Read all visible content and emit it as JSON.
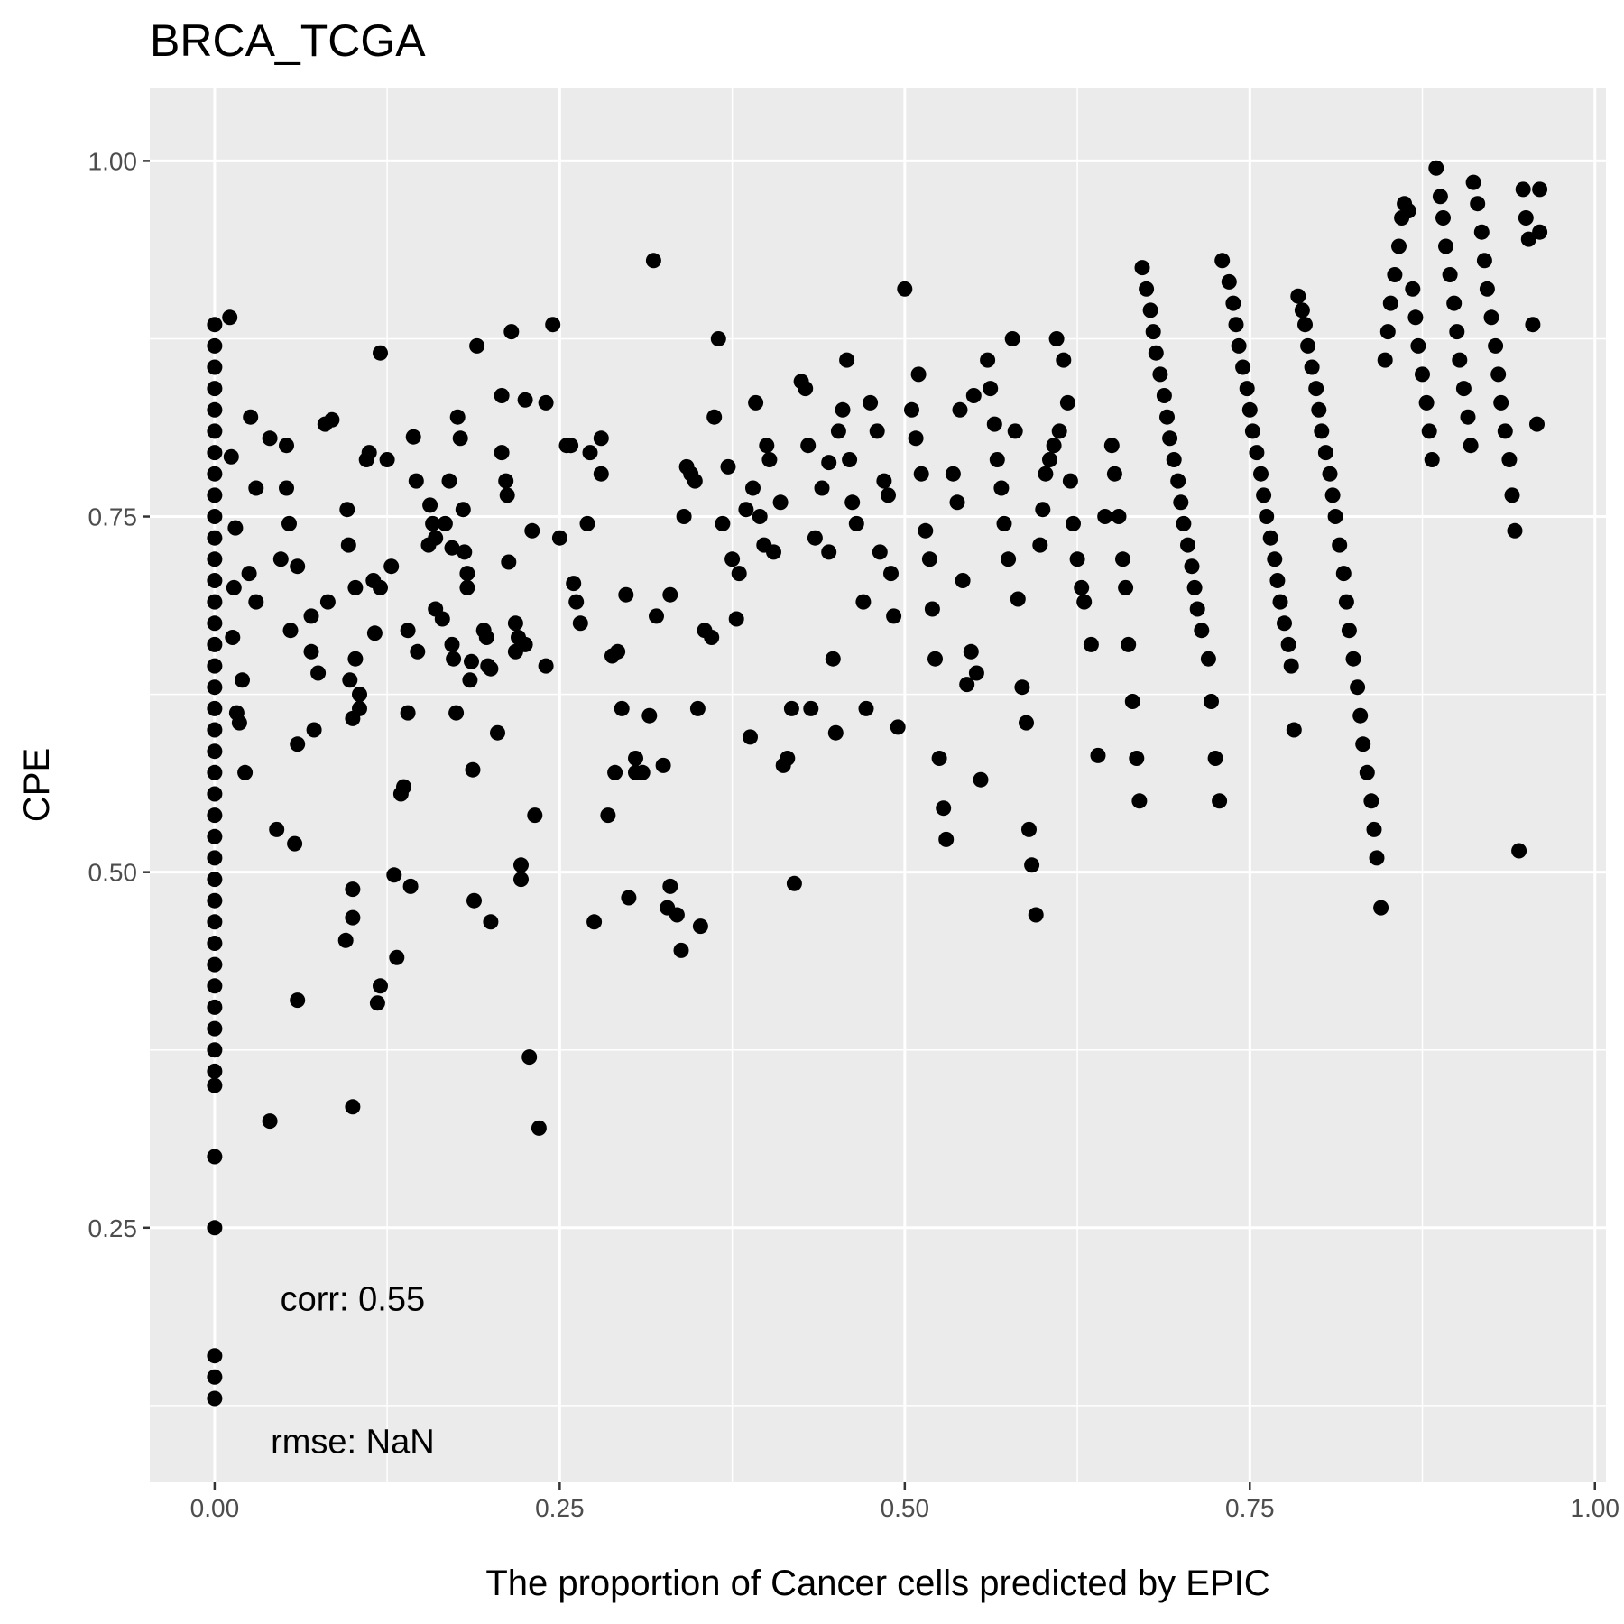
{
  "chart_data": {
    "type": "scatter",
    "title": "BRCA_TCGA",
    "xlabel": "The proportion of Cancer cells predicted by EPIC",
    "ylabel": "CPE",
    "xlim": [
      -0.047,
      1.008
    ],
    "ylim": [
      0.071,
      1.051
    ],
    "x_ticks": [
      0.0,
      0.25,
      0.5,
      0.75,
      1.0
    ],
    "x_tick_labels": [
      "0.00",
      "0.25",
      "0.50",
      "0.75",
      "1.00"
    ],
    "y_ticks": [
      0.25,
      0.5,
      0.75,
      1.0
    ],
    "y_tick_labels": [
      "0.25",
      "0.50",
      "0.75",
      "1.00"
    ],
    "grid": true,
    "legend": "none",
    "colors": {
      "panel": "#ebebeb",
      "grid": "#ffffff",
      "point": "#000000",
      "tick": "#4d4d4d"
    },
    "annotations": [
      {
        "label": "corr: 0.55",
        "x": 0.1,
        "y": 0.2
      },
      {
        "label": "rmse: NaN",
        "x": 0.1,
        "y": 0.1
      }
    ],
    "points": [
      [
        0.0,
        0.885
      ],
      [
        0.0,
        0.87
      ],
      [
        0.0,
        0.855
      ],
      [
        0.0,
        0.84
      ],
      [
        0.0,
        0.825
      ],
      [
        0.0,
        0.81
      ],
      [
        0.0,
        0.795
      ],
      [
        0.0,
        0.78
      ],
      [
        0.0,
        0.765
      ],
      [
        0.0,
        0.75
      ],
      [
        0.0,
        0.735
      ],
      [
        0.0,
        0.72
      ],
      [
        0.0,
        0.705
      ],
      [
        0.0,
        0.69
      ],
      [
        0.0,
        0.675
      ],
      [
        0.0,
        0.66
      ],
      [
        0.0,
        0.645
      ],
      [
        0.0,
        0.63
      ],
      [
        0.0,
        0.615
      ],
      [
        0.0,
        0.6
      ],
      [
        0.0,
        0.585
      ],
      [
        0.0,
        0.57
      ],
      [
        0.0,
        0.555
      ],
      [
        0.0,
        0.54
      ],
      [
        0.0,
        0.525
      ],
      [
        0.0,
        0.51
      ],
      [
        0.0,
        0.495
      ],
      [
        0.0,
        0.48
      ],
      [
        0.0,
        0.465
      ],
      [
        0.0,
        0.45
      ],
      [
        0.0,
        0.435
      ],
      [
        0.0,
        0.42
      ],
      [
        0.0,
        0.405
      ],
      [
        0.0,
        0.39
      ],
      [
        0.0,
        0.375
      ],
      [
        0.0,
        0.36
      ],
      [
        0.0,
        0.35
      ],
      [
        0.0,
        0.3
      ],
      [
        0.0,
        0.25
      ],
      [
        0.0,
        0.16
      ],
      [
        0.0,
        0.145
      ],
      [
        0.0,
        0.13
      ],
      [
        0.011,
        0.89
      ],
      [
        0.012,
        0.792
      ],
      [
        0.015,
        0.742
      ],
      [
        0.014,
        0.7
      ],
      [
        0.013,
        0.665
      ],
      [
        0.016,
        0.612
      ],
      [
        0.018,
        0.605
      ],
      [
        0.02,
        0.635
      ],
      [
        0.022,
        0.57
      ],
      [
        0.025,
        0.71
      ],
      [
        0.026,
        0.82
      ],
      [
        0.03,
        0.77
      ],
      [
        0.03,
        0.69
      ],
      [
        0.04,
        0.325
      ],
      [
        0.04,
        0.805
      ],
      [
        0.045,
        0.53
      ],
      [
        0.048,
        0.72
      ],
      [
        0.052,
        0.8
      ],
      [
        0.052,
        0.77
      ],
      [
        0.054,
        0.745
      ],
      [
        0.055,
        0.67
      ],
      [
        0.058,
        0.52
      ],
      [
        0.06,
        0.715
      ],
      [
        0.06,
        0.59
      ],
      [
        0.06,
        0.41
      ],
      [
        0.07,
        0.68
      ],
      [
        0.07,
        0.655
      ],
      [
        0.072,
        0.6
      ],
      [
        0.075,
        0.64
      ],
      [
        0.08,
        0.815
      ],
      [
        0.082,
        0.69
      ],
      [
        0.085,
        0.818
      ],
      [
        0.095,
        0.452
      ],
      [
        0.096,
        0.755
      ],
      [
        0.097,
        0.73
      ],
      [
        0.098,
        0.635
      ],
      [
        0.1,
        0.608
      ],
      [
        0.102,
        0.65
      ],
      [
        0.102,
        0.7
      ],
      [
        0.1,
        0.488
      ],
      [
        0.1,
        0.468
      ],
      [
        0.1,
        0.335
      ],
      [
        0.105,
        0.615
      ],
      [
        0.105,
        0.625
      ],
      [
        0.11,
        0.79
      ],
      [
        0.112,
        0.795
      ],
      [
        0.115,
        0.705
      ],
      [
        0.116,
        0.668
      ],
      [
        0.118,
        0.408
      ],
      [
        0.12,
        0.7
      ],
      [
        0.12,
        0.42
      ],
      [
        0.12,
        0.865
      ],
      [
        0.125,
        0.79
      ],
      [
        0.128,
        0.715
      ],
      [
        0.13,
        0.498
      ],
      [
        0.132,
        0.44
      ],
      [
        0.135,
        0.555
      ],
      [
        0.137,
        0.56
      ],
      [
        0.14,
        0.67
      ],
      [
        0.14,
        0.612
      ],
      [
        0.142,
        0.49
      ],
      [
        0.144,
        0.806
      ],
      [
        0.146,
        0.775
      ],
      [
        0.147,
        0.655
      ],
      [
        0.155,
        0.73
      ],
      [
        0.156,
        0.758
      ],
      [
        0.158,
        0.745
      ],
      [
        0.16,
        0.685
      ],
      [
        0.16,
        0.735
      ],
      [
        0.165,
        0.678
      ],
      [
        0.167,
        0.745
      ],
      [
        0.17,
        0.775
      ],
      [
        0.172,
        0.728
      ],
      [
        0.172,
        0.66
      ],
      [
        0.173,
        0.65
      ],
      [
        0.175,
        0.612
      ],
      [
        0.176,
        0.82
      ],
      [
        0.178,
        0.805
      ],
      [
        0.18,
        0.755
      ],
      [
        0.181,
        0.725
      ],
      [
        0.183,
        0.71
      ],
      [
        0.183,
        0.7
      ],
      [
        0.186,
        0.648
      ],
      [
        0.185,
        0.635
      ],
      [
        0.187,
        0.572
      ],
      [
        0.188,
        0.48
      ],
      [
        0.19,
        0.87
      ],
      [
        0.195,
        0.67
      ],
      [
        0.197,
        0.665
      ],
      [
        0.198,
        0.645
      ],
      [
        0.2,
        0.643
      ],
      [
        0.2,
        0.465
      ],
      [
        0.205,
        0.598
      ],
      [
        0.208,
        0.835
      ],
      [
        0.208,
        0.795
      ],
      [
        0.211,
        0.775
      ],
      [
        0.212,
        0.765
      ],
      [
        0.213,
        0.718
      ],
      [
        0.215,
        0.88
      ],
      [
        0.218,
        0.675
      ],
      [
        0.218,
        0.655
      ],
      [
        0.22,
        0.665
      ],
      [
        0.222,
        0.505
      ],
      [
        0.222,
        0.495
      ],
      [
        0.225,
        0.66
      ],
      [
        0.225,
        0.832
      ],
      [
        0.228,
        0.37
      ],
      [
        0.23,
        0.74
      ],
      [
        0.232,
        0.54
      ],
      [
        0.235,
        0.32
      ],
      [
        0.24,
        0.645
      ],
      [
        0.24,
        0.83
      ],
      [
        0.245,
        0.885
      ],
      [
        0.25,
        0.735
      ],
      [
        0.255,
        0.8
      ],
      [
        0.258,
        0.8
      ],
      [
        0.26,
        0.703
      ],
      [
        0.262,
        0.69
      ],
      [
        0.265,
        0.675
      ],
      [
        0.27,
        0.745
      ],
      [
        0.272,
        0.795
      ],
      [
        0.275,
        0.465
      ],
      [
        0.28,
        0.805
      ],
      [
        0.28,
        0.78
      ],
      [
        0.285,
        0.54
      ],
      [
        0.288,
        0.652
      ],
      [
        0.29,
        0.57
      ],
      [
        0.292,
        0.655
      ],
      [
        0.295,
        0.615
      ],
      [
        0.298,
        0.695
      ],
      [
        0.3,
        0.482
      ],
      [
        0.305,
        0.58
      ],
      [
        0.305,
        0.57
      ],
      [
        0.31,
        0.57
      ],
      [
        0.315,
        0.61
      ],
      [
        0.318,
        0.93
      ],
      [
        0.32,
        0.68
      ],
      [
        0.325,
        0.575
      ],
      [
        0.328,
        0.475
      ],
      [
        0.33,
        0.695
      ],
      [
        0.33,
        0.49
      ],
      [
        0.335,
        0.47
      ],
      [
        0.338,
        0.445
      ],
      [
        0.34,
        0.75
      ],
      [
        0.342,
        0.785
      ],
      [
        0.345,
        0.78
      ],
      [
        0.348,
        0.775
      ],
      [
        0.35,
        0.615
      ],
      [
        0.352,
        0.462
      ],
      [
        0.355,
        0.67
      ],
      [
        0.36,
        0.665
      ],
      [
        0.362,
        0.82
      ],
      [
        0.365,
        0.875
      ],
      [
        0.368,
        0.745
      ],
      [
        0.372,
        0.785
      ],
      [
        0.375,
        0.72
      ],
      [
        0.378,
        0.678
      ],
      [
        0.38,
        0.71
      ],
      [
        0.385,
        0.755
      ],
      [
        0.388,
        0.595
      ],
      [
        0.39,
        0.77
      ],
      [
        0.392,
        0.83
      ],
      [
        0.395,
        0.75
      ],
      [
        0.398,
        0.73
      ],
      [
        0.4,
        0.8
      ],
      [
        0.402,
        0.79
      ],
      [
        0.405,
        0.725
      ],
      [
        0.41,
        0.76
      ],
      [
        0.412,
        0.575
      ],
      [
        0.415,
        0.58
      ],
      [
        0.418,
        0.615
      ],
      [
        0.42,
        0.492
      ],
      [
        0.425,
        0.845
      ],
      [
        0.428,
        0.84
      ],
      [
        0.43,
        0.8
      ],
      [
        0.432,
        0.615
      ],
      [
        0.435,
        0.735
      ],
      [
        0.44,
        0.77
      ],
      [
        0.445,
        0.788
      ],
      [
        0.445,
        0.725
      ],
      [
        0.448,
        0.65
      ],
      [
        0.45,
        0.598
      ],
      [
        0.452,
        0.81
      ],
      [
        0.455,
        0.825
      ],
      [
        0.458,
        0.86
      ],
      [
        0.46,
        0.79
      ],
      [
        0.462,
        0.76
      ],
      [
        0.465,
        0.745
      ],
      [
        0.47,
        0.69
      ],
      [
        0.472,
        0.615
      ],
      [
        0.475,
        0.83
      ],
      [
        0.48,
        0.81
      ],
      [
        0.482,
        0.725
      ],
      [
        0.485,
        0.775
      ],
      [
        0.488,
        0.765
      ],
      [
        0.49,
        0.71
      ],
      [
        0.492,
        0.68
      ],
      [
        0.495,
        0.602
      ],
      [
        0.5,
        0.91
      ],
      [
        0.505,
        0.825
      ],
      [
        0.508,
        0.805
      ],
      [
        0.51,
        0.85
      ],
      [
        0.512,
        0.78
      ],
      [
        0.515,
        0.74
      ],
      [
        0.518,
        0.72
      ],
      [
        0.52,
        0.685
      ],
      [
        0.522,
        0.65
      ],
      [
        0.525,
        0.58
      ],
      [
        0.528,
        0.545
      ],
      [
        0.53,
        0.523
      ],
      [
        0.535,
        0.78
      ],
      [
        0.538,
        0.76
      ],
      [
        0.54,
        0.825
      ],
      [
        0.542,
        0.705
      ],
      [
        0.545,
        0.632
      ],
      [
        0.548,
        0.655
      ],
      [
        0.55,
        0.835
      ],
      [
        0.552,
        0.64
      ],
      [
        0.555,
        0.565
      ],
      [
        0.56,
        0.86
      ],
      [
        0.562,
        0.84
      ],
      [
        0.565,
        0.815
      ],
      [
        0.567,
        0.79
      ],
      [
        0.57,
        0.77
      ],
      [
        0.572,
        0.745
      ],
      [
        0.575,
        0.72
      ],
      [
        0.578,
        0.875
      ],
      [
        0.58,
        0.81
      ],
      [
        0.582,
        0.692
      ],
      [
        0.585,
        0.63
      ],
      [
        0.588,
        0.605
      ],
      [
        0.59,
        0.53
      ],
      [
        0.592,
        0.505
      ],
      [
        0.595,
        0.47
      ],
      [
        0.598,
        0.73
      ],
      [
        0.6,
        0.755
      ],
      [
        0.602,
        0.78
      ],
      [
        0.605,
        0.79
      ],
      [
        0.608,
        0.8
      ],
      [
        0.61,
        0.875
      ],
      [
        0.612,
        0.81
      ],
      [
        0.615,
        0.86
      ],
      [
        0.618,
        0.83
      ],
      [
        0.62,
        0.775
      ],
      [
        0.622,
        0.745
      ],
      [
        0.625,
        0.72
      ],
      [
        0.628,
        0.7
      ],
      [
        0.63,
        0.69
      ],
      [
        0.635,
        0.66
      ],
      [
        0.64,
        0.582
      ],
      [
        0.645,
        0.75
      ],
      [
        0.65,
        0.8
      ],
      [
        0.652,
        0.78
      ],
      [
        0.655,
        0.75
      ],
      [
        0.658,
        0.72
      ],
      [
        0.66,
        0.7
      ],
      [
        0.662,
        0.66
      ],
      [
        0.665,
        0.62
      ],
      [
        0.668,
        0.58
      ],
      [
        0.67,
        0.55
      ],
      [
        0.672,
        0.925
      ],
      [
        0.675,
        0.91
      ],
      [
        0.678,
        0.895
      ],
      [
        0.68,
        0.88
      ],
      [
        0.682,
        0.865
      ],
      [
        0.685,
        0.85
      ],
      [
        0.688,
        0.835
      ],
      [
        0.69,
        0.82
      ],
      [
        0.692,
        0.805
      ],
      [
        0.695,
        0.79
      ],
      [
        0.698,
        0.775
      ],
      [
        0.7,
        0.76
      ],
      [
        0.702,
        0.745
      ],
      [
        0.705,
        0.73
      ],
      [
        0.708,
        0.715
      ],
      [
        0.71,
        0.7
      ],
      [
        0.712,
        0.685
      ],
      [
        0.715,
        0.67
      ],
      [
        0.72,
        0.65
      ],
      [
        0.722,
        0.62
      ],
      [
        0.725,
        0.58
      ],
      [
        0.728,
        0.55
      ],
      [
        0.73,
        0.93
      ],
      [
        0.735,
        0.915
      ],
      [
        0.738,
        0.9
      ],
      [
        0.74,
        0.885
      ],
      [
        0.742,
        0.87
      ],
      [
        0.745,
        0.855
      ],
      [
        0.748,
        0.84
      ],
      [
        0.75,
        0.825
      ],
      [
        0.752,
        0.81
      ],
      [
        0.755,
        0.795
      ],
      [
        0.758,
        0.78
      ],
      [
        0.76,
        0.765
      ],
      [
        0.762,
        0.75
      ],
      [
        0.765,
        0.735
      ],
      [
        0.768,
        0.72
      ],
      [
        0.77,
        0.705
      ],
      [
        0.772,
        0.69
      ],
      [
        0.775,
        0.675
      ],
      [
        0.778,
        0.66
      ],
      [
        0.78,
        0.645
      ],
      [
        0.782,
        0.6
      ],
      [
        0.785,
        0.905
      ],
      [
        0.788,
        0.895
      ],
      [
        0.79,
        0.885
      ],
      [
        0.792,
        0.87
      ],
      [
        0.795,
        0.855
      ],
      [
        0.798,
        0.84
      ],
      [
        0.8,
        0.825
      ],
      [
        0.802,
        0.81
      ],
      [
        0.805,
        0.795
      ],
      [
        0.808,
        0.78
      ],
      [
        0.81,
        0.765
      ],
      [
        0.812,
        0.75
      ],
      [
        0.815,
        0.73
      ],
      [
        0.818,
        0.71
      ],
      [
        0.82,
        0.69
      ],
      [
        0.822,
        0.67
      ],
      [
        0.825,
        0.65
      ],
      [
        0.828,
        0.63
      ],
      [
        0.83,
        0.61
      ],
      [
        0.832,
        0.59
      ],
      [
        0.835,
        0.57
      ],
      [
        0.838,
        0.55
      ],
      [
        0.84,
        0.53
      ],
      [
        0.842,
        0.51
      ],
      [
        0.845,
        0.475
      ],
      [
        0.848,
        0.86
      ],
      [
        0.85,
        0.88
      ],
      [
        0.852,
        0.9
      ],
      [
        0.855,
        0.92
      ],
      [
        0.858,
        0.94
      ],
      [
        0.86,
        0.96
      ],
      [
        0.862,
        0.97
      ],
      [
        0.865,
        0.965
      ],
      [
        0.868,
        0.91
      ],
      [
        0.87,
        0.89
      ],
      [
        0.872,
        0.87
      ],
      [
        0.875,
        0.85
      ],
      [
        0.878,
        0.83
      ],
      [
        0.88,
        0.81
      ],
      [
        0.882,
        0.79
      ],
      [
        0.885,
        0.995
      ],
      [
        0.888,
        0.975
      ],
      [
        0.89,
        0.96
      ],
      [
        0.892,
        0.94
      ],
      [
        0.895,
        0.92
      ],
      [
        0.898,
        0.9
      ],
      [
        0.9,
        0.88
      ],
      [
        0.902,
        0.86
      ],
      [
        0.905,
        0.84
      ],
      [
        0.908,
        0.82
      ],
      [
        0.91,
        0.8
      ],
      [
        0.912,
        0.985
      ],
      [
        0.915,
        0.97
      ],
      [
        0.918,
        0.95
      ],
      [
        0.92,
        0.93
      ],
      [
        0.922,
        0.91
      ],
      [
        0.925,
        0.89
      ],
      [
        0.928,
        0.87
      ],
      [
        0.93,
        0.85
      ],
      [
        0.932,
        0.83
      ],
      [
        0.935,
        0.81
      ],
      [
        0.938,
        0.79
      ],
      [
        0.94,
        0.765
      ],
      [
        0.942,
        0.74
      ],
      [
        0.945,
        0.515
      ],
      [
        0.948,
        0.98
      ],
      [
        0.95,
        0.96
      ],
      [
        0.952,
        0.945
      ],
      [
        0.955,
        0.885
      ],
      [
        0.958,
        0.815
      ],
      [
        0.96,
        0.95
      ],
      [
        0.96,
        0.98
      ]
    ]
  }
}
